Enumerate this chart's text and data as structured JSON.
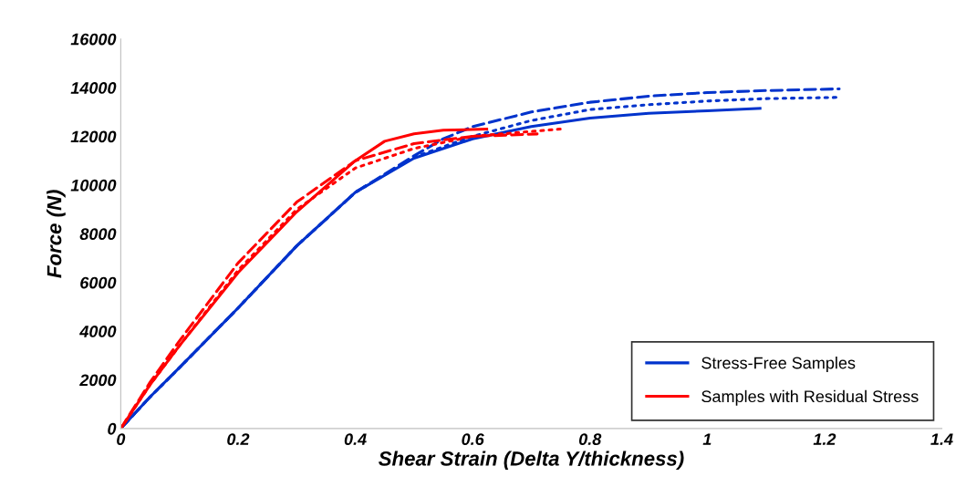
{
  "chart_data": {
    "type": "line",
    "xlabel": "Shear Strain (Delta Y/thickness)",
    "ylabel": "Force (N)",
    "xlim": [
      0,
      1.4
    ],
    "xticks": [
      0,
      0.2,
      0.4,
      0.6,
      0.8,
      1,
      1.2,
      1.4
    ],
    "ylim": [
      0,
      16000
    ],
    "yticks": [
      0,
      2000,
      4000,
      6000,
      8000,
      10000,
      12000,
      14000,
      16000
    ],
    "grid": false,
    "legend": "bottom right",
    "series": [
      {
        "name": "Stress-Free Samples",
        "color": "#0033cc",
        "line_style": "solid",
        "x": [
          0,
          0.05,
          0.1,
          0.2,
          0.3,
          0.4,
          0.5,
          0.6,
          0.7,
          0.8,
          0.9,
          1.0,
          1.09
        ],
        "values": [
          0,
          1300,
          2500,
          4950,
          7500,
          9700,
          11100,
          11900,
          12400,
          12750,
          12950,
          13050,
          13150
        ]
      },
      {
        "color": "#0033cc",
        "line_style": "dashed",
        "x": [
          0,
          0.05,
          0.1,
          0.2,
          0.3,
          0.4,
          0.5,
          0.55,
          0.6,
          0.7,
          0.8,
          0.9,
          1.0,
          1.1,
          1.225
        ],
        "values": [
          0,
          1300,
          2500,
          4950,
          7500,
          9700,
          11200,
          11900,
          12400,
          13000,
          13400,
          13650,
          13800,
          13880,
          13950
        ]
      },
      {
        "color": "#0033cc",
        "line_style": "dotted",
        "x": [
          0,
          0.05,
          0.1,
          0.2,
          0.3,
          0.4,
          0.5,
          0.6,
          0.7,
          0.8,
          0.9,
          1.0,
          1.1,
          1.22
        ],
        "values": [
          0,
          1300,
          2500,
          4950,
          7500,
          9700,
          11150,
          12000,
          12650,
          13100,
          13300,
          13450,
          13550,
          13600
        ]
      },
      {
        "name": "Samples with Residual Stress",
        "color": "#ff0000",
        "line_style": "solid",
        "x": [
          0,
          0.05,
          0.1,
          0.2,
          0.3,
          0.4,
          0.45,
          0.5,
          0.55,
          0.624
        ],
        "values": [
          0,
          1800,
          3400,
          6400,
          8900,
          11000,
          11800,
          12100,
          12250,
          12300
        ]
      },
      {
        "color": "#ff0000",
        "line_style": "dashed",
        "x": [
          0,
          0.05,
          0.1,
          0.2,
          0.3,
          0.4,
          0.5,
          0.6,
          0.71
        ],
        "values": [
          0,
          1900,
          3600,
          6800,
          9300,
          11000,
          11700,
          12000,
          12100
        ]
      },
      {
        "color": "#ff0000",
        "line_style": "dotted",
        "x": [
          0,
          0.05,
          0.1,
          0.2,
          0.3,
          0.4,
          0.5,
          0.6,
          0.75
        ],
        "values": [
          0,
          1800,
          3400,
          6500,
          9000,
          10700,
          11500,
          12000,
          12300
        ]
      }
    ]
  }
}
